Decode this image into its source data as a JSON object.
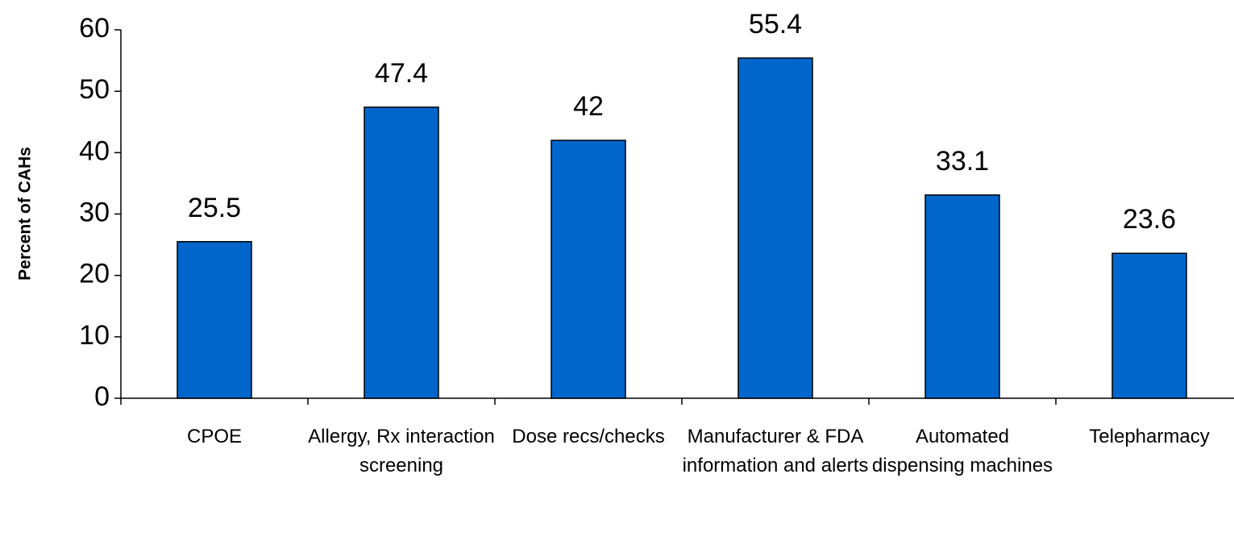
{
  "chart_data": {
    "type": "bar",
    "y_axis_label": "Percent of CAHs",
    "categories": [
      "CPOE",
      "Allergy, Rx interaction screening",
      "Dose recs/checks",
      "Manufacturer & FDA information and alerts",
      "Automated dispensing machines",
      "Telepharmacy"
    ],
    "values": [
      25.5,
      47.4,
      42,
      55.4,
      33.1,
      23.6
    ],
    "color": "#0066cc",
    "ylim": [
      0,
      60
    ],
    "yticks": [
      0,
      10,
      20,
      30,
      40,
      50,
      60
    ],
    "grid": false
  }
}
